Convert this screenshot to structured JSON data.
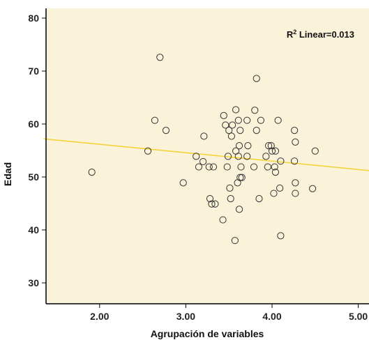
{
  "chart_data": {
    "type": "scatter",
    "title": "",
    "xlabel": "Agrupación de variables",
    "ylabel": "Edad",
    "xlim": [
      1.35,
      5.13
    ],
    "ylim": [
      30,
      85
    ],
    "xticks": [
      2,
      3,
      4,
      5
    ],
    "xtick_labels": [
      "2.00",
      "3.00",
      "4.00",
      "5.00"
    ],
    "yticks": [
      30,
      40,
      50,
      60,
      70,
      80
    ],
    "ytick_labels": [
      "30",
      "40",
      "50",
      "60",
      "70",
      "80"
    ],
    "grid": false,
    "annotation": {
      "prefix": "R",
      "sup": "2",
      "text": " Linear=0.013"
    },
    "fit_line": {
      "name": "Linear",
      "x": [
        1.35,
        5.13
      ],
      "y": [
        57.2,
        51.2
      ],
      "color": "#f2d43a"
    },
    "colors": {
      "plot_background": "#fbf2da",
      "marker_stroke": "#333333",
      "axis": "#000000"
    },
    "points": [
      [
        1.91,
        50.9
      ],
      [
        2.56,
        54.9
      ],
      [
        2.64,
        60.7
      ],
      [
        2.7,
        72.6
      ],
      [
        2.77,
        58.8
      ],
      [
        2.97,
        48.9
      ],
      [
        3.12,
        53.9
      ],
      [
        3.15,
        51.9
      ],
      [
        3.2,
        52.9
      ],
      [
        3.21,
        57.7
      ],
      [
        3.27,
        51.9
      ],
      [
        3.28,
        45.9
      ],
      [
        3.3,
        44.9
      ],
      [
        3.32,
        51.9
      ],
      [
        3.34,
        44.9
      ],
      [
        3.43,
        41.9
      ],
      [
        3.44,
        61.6
      ],
      [
        3.46,
        59.8
      ],
      [
        3.48,
        51.9
      ],
      [
        3.49,
        53.9
      ],
      [
        3.5,
        58.8
      ],
      [
        3.51,
        47.9
      ],
      [
        3.52,
        45.9
      ],
      [
        3.53,
        57.7
      ],
      [
        3.54,
        59.8
      ],
      [
        3.57,
        38.0
      ],
      [
        3.58,
        54.9
      ],
      [
        3.58,
        62.7
      ],
      [
        3.6,
        48.9
      ],
      [
        3.61,
        60.7
      ],
      [
        3.61,
        53.9
      ],
      [
        3.62,
        55.9
      ],
      [
        3.62,
        43.9
      ],
      [
        3.63,
        49.9
      ],
      [
        3.63,
        58.8
      ],
      [
        3.64,
        51.9
      ],
      [
        3.65,
        49.9
      ],
      [
        3.71,
        60.7
      ],
      [
        3.71,
        53.9
      ],
      [
        3.72,
        55.9
      ],
      [
        3.79,
        51.9
      ],
      [
        3.8,
        62.6
      ],
      [
        3.82,
        68.6
      ],
      [
        3.82,
        58.8
      ],
      [
        3.85,
        45.9
      ],
      [
        3.87,
        60.7
      ],
      [
        3.93,
        53.9
      ],
      [
        3.95,
        51.9
      ],
      [
        3.96,
        55.9
      ],
      [
        3.99,
        55.9
      ],
      [
        4.0,
        54.9
      ],
      [
        4.02,
        46.9
      ],
      [
        4.03,
        51.9
      ],
      [
        4.04,
        54.9
      ],
      [
        4.04,
        50.9
      ],
      [
        4.07,
        60.7
      ],
      [
        4.09,
        47.9
      ],
      [
        4.1,
        53.0
      ],
      [
        4.1,
        38.9
      ],
      [
        4.26,
        58.8
      ],
      [
        4.26,
        53.0
      ],
      [
        4.27,
        56.6
      ],
      [
        4.27,
        48.9
      ],
      [
        4.27,
        46.9
      ],
      [
        4.47,
        47.8
      ],
      [
        4.5,
        54.9
      ]
    ]
  }
}
